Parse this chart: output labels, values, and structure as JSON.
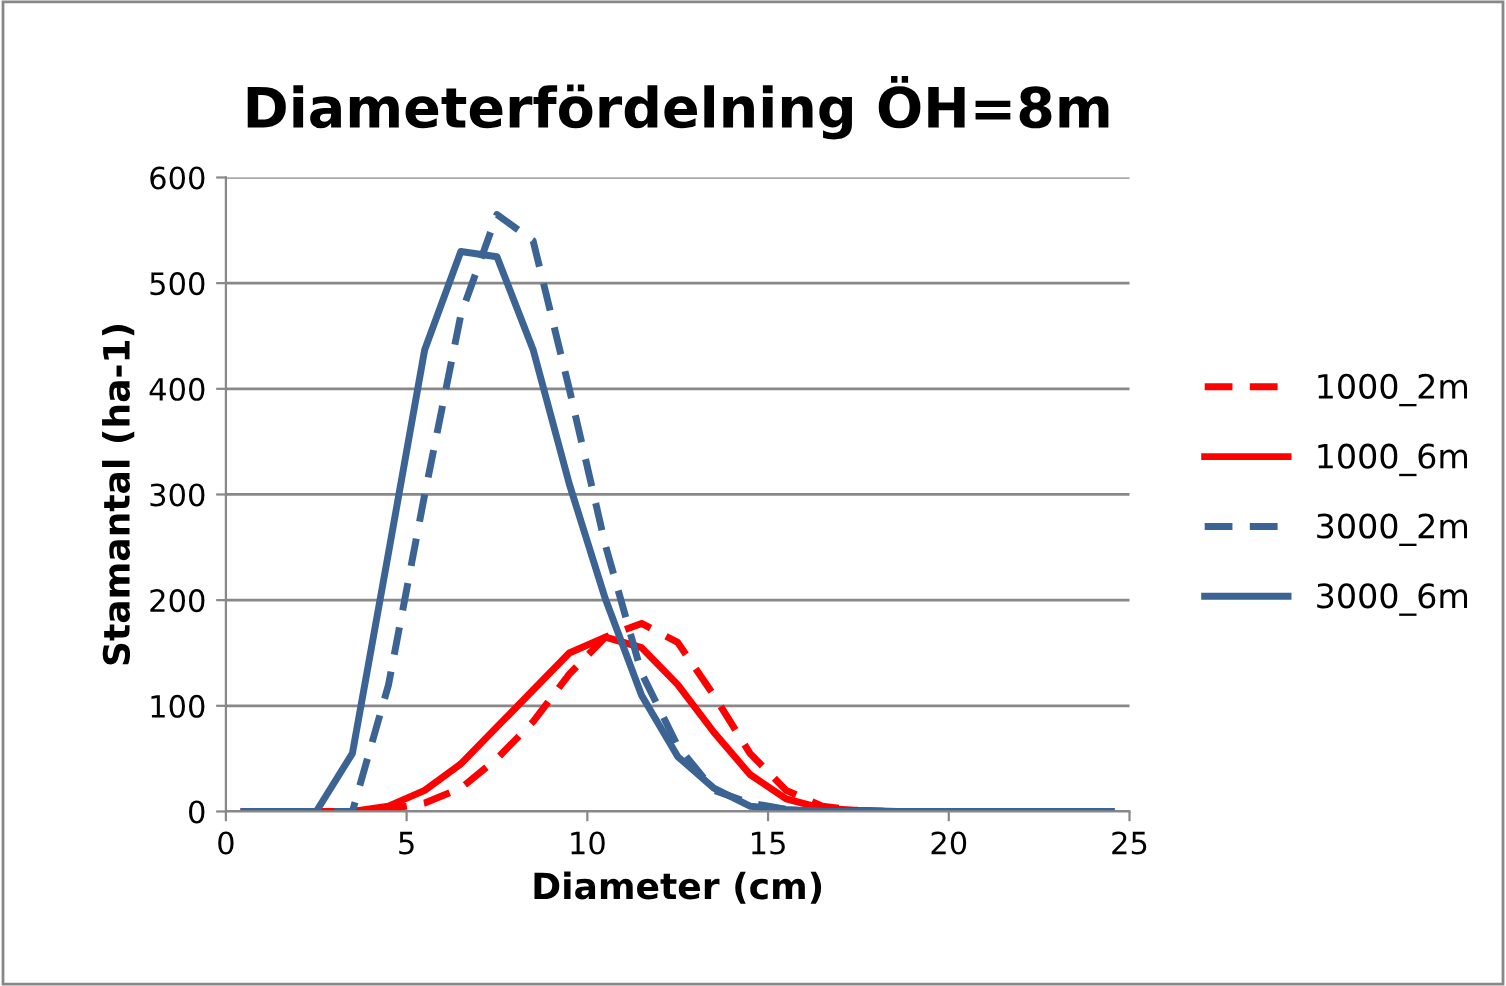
{
  "chart_data": {
    "type": "line",
    "title": "Diameterfördelning ÖH=8m",
    "xlabel": "Diameter (cm)",
    "ylabel": "Stamantal (ha-1)",
    "x": [
      0.5,
      1.5,
      2.5,
      3.5,
      4.5,
      5.5,
      6.5,
      7.5,
      8.5,
      9.5,
      10.5,
      11.5,
      12.5,
      13.5,
      14.5,
      15.5,
      16.5,
      17.5,
      18.5,
      19.5,
      20.5,
      21.5,
      22.5,
      23.5,
      24.5
    ],
    "series": [
      {
        "name": "1000_2m",
        "color": "#ff0000",
        "line_style": "dashed",
        "values": [
          0,
          0,
          0,
          0,
          2,
          8,
          22,
          50,
          85,
          130,
          165,
          178,
          160,
          110,
          55,
          20,
          5,
          1,
          0,
          null,
          null,
          null,
          null,
          null,
          null
        ]
      },
      {
        "name": "1000_6m",
        "color": "#ff0000",
        "line_style": "solid",
        "values": [
          0,
          0,
          0,
          0,
          5,
          20,
          45,
          80,
          115,
          150,
          165,
          155,
          120,
          75,
          35,
          12,
          3,
          1,
          0,
          null,
          null,
          null,
          null,
          null,
          null
        ]
      },
      {
        "name": "3000_2m",
        "color": "#3b6394",
        "line_style": "dashed",
        "values": [
          0,
          0,
          0,
          0,
          120,
          300,
          470,
          565,
          540,
          400,
          252,
          131,
          62,
          20,
          8,
          2,
          0,
          0,
          0,
          0,
          0,
          0,
          0,
          0,
          0
        ]
      },
      {
        "name": "3000_6m",
        "color": "#3b6394",
        "line_style": "solid",
        "values": [
          0,
          0,
          0,
          55,
          245,
          437,
          530,
          525,
          437,
          310,
          201,
          110,
          52,
          22,
          5,
          2,
          0,
          0,
          0,
          0,
          0,
          0,
          0,
          0,
          0
        ]
      }
    ],
    "xlim": [
      0,
      25
    ],
    "xticks": [
      0,
      5,
      10,
      15,
      20,
      25
    ],
    "ylim": [
      0,
      600
    ],
    "yticks": [
      0,
      100,
      200,
      300,
      400,
      500,
      600
    ],
    "grid": "y",
    "legend": "right",
    "marker": "none"
  }
}
